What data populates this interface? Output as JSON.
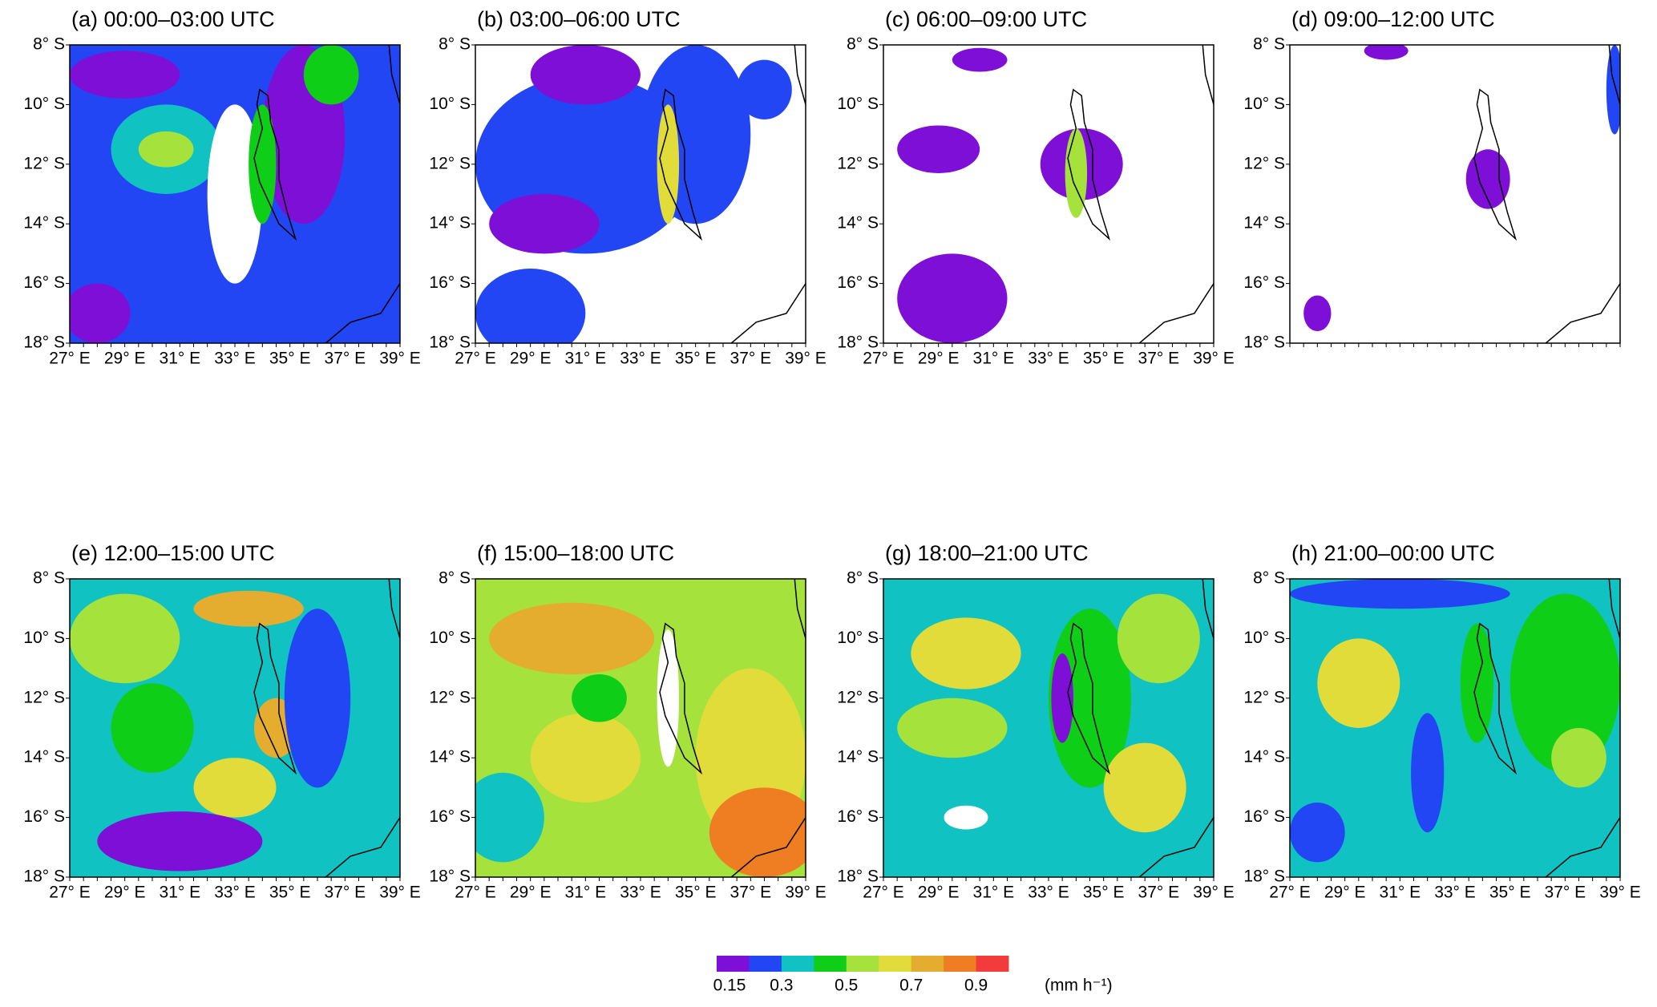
{
  "panels": [
    {
      "title": "(a) 00:00–03:00 UTC"
    },
    {
      "title": "(b) 03:00–06:00 UTC"
    },
    {
      "title": "(c) 06:00–09:00 UTC"
    },
    {
      "title": "(d) 09:00–12:00 UTC"
    },
    {
      "title": "(e) 12:00–15:00 UTC"
    },
    {
      "title": "(f) 15:00–18:00 UTC"
    },
    {
      "title": "(g) 18:00–21:00 UTC"
    },
    {
      "title": "(h) 21:00–00:00 UTC"
    }
  ],
  "yticks": [
    "8° S",
    "10° S",
    "12° S",
    "14° S",
    "16° S",
    "18° S"
  ],
  "xticks": [
    "27° E",
    "29° E",
    "31° E",
    "33° E",
    "35° E",
    "37° E",
    "39° E"
  ],
  "colorbar": {
    "colors": [
      "#7d0fd6",
      "#2346f5",
      "#10c2c2",
      "#0fce17",
      "#a6e23c",
      "#e2dc3a",
      "#e4ad2f",
      "#ef7d22",
      "#f23b3b"
    ],
    "labels": [
      "0.15",
      "0.3",
      "0.5",
      "0.7",
      "0.9"
    ],
    "unit": "(mm h⁻¹)"
  }
}
